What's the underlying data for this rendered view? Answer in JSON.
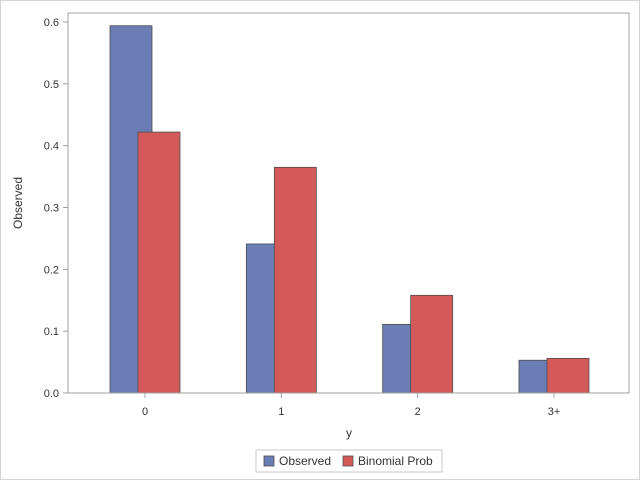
{
  "chart_data": {
    "type": "bar",
    "title": "",
    "xlabel": "y",
    "ylabel": "Observed",
    "categories": [
      "0",
      "1",
      "2",
      "3+"
    ],
    "series": [
      {
        "name": "Observed",
        "values": [
          0.594,
          0.241,
          0.111,
          0.053
        ]
      },
      {
        "name": "Binomial Prob",
        "values": [
          0.422,
          0.365,
          0.158,
          0.056
        ]
      }
    ],
    "ylim": [
      0,
      0.6
    ],
    "yticks": [
      "0.0",
      "0.1",
      "0.2",
      "0.3",
      "0.4",
      "0.5",
      "0.6"
    ],
    "grid": false,
    "legend_position": "bottom-center",
    "colors": {
      "Observed": "#6a7db5",
      "Binomial Prob": "#d45a5a",
      "bar_outline": "#4d4d4d",
      "axis": "#a0a0a0"
    }
  }
}
